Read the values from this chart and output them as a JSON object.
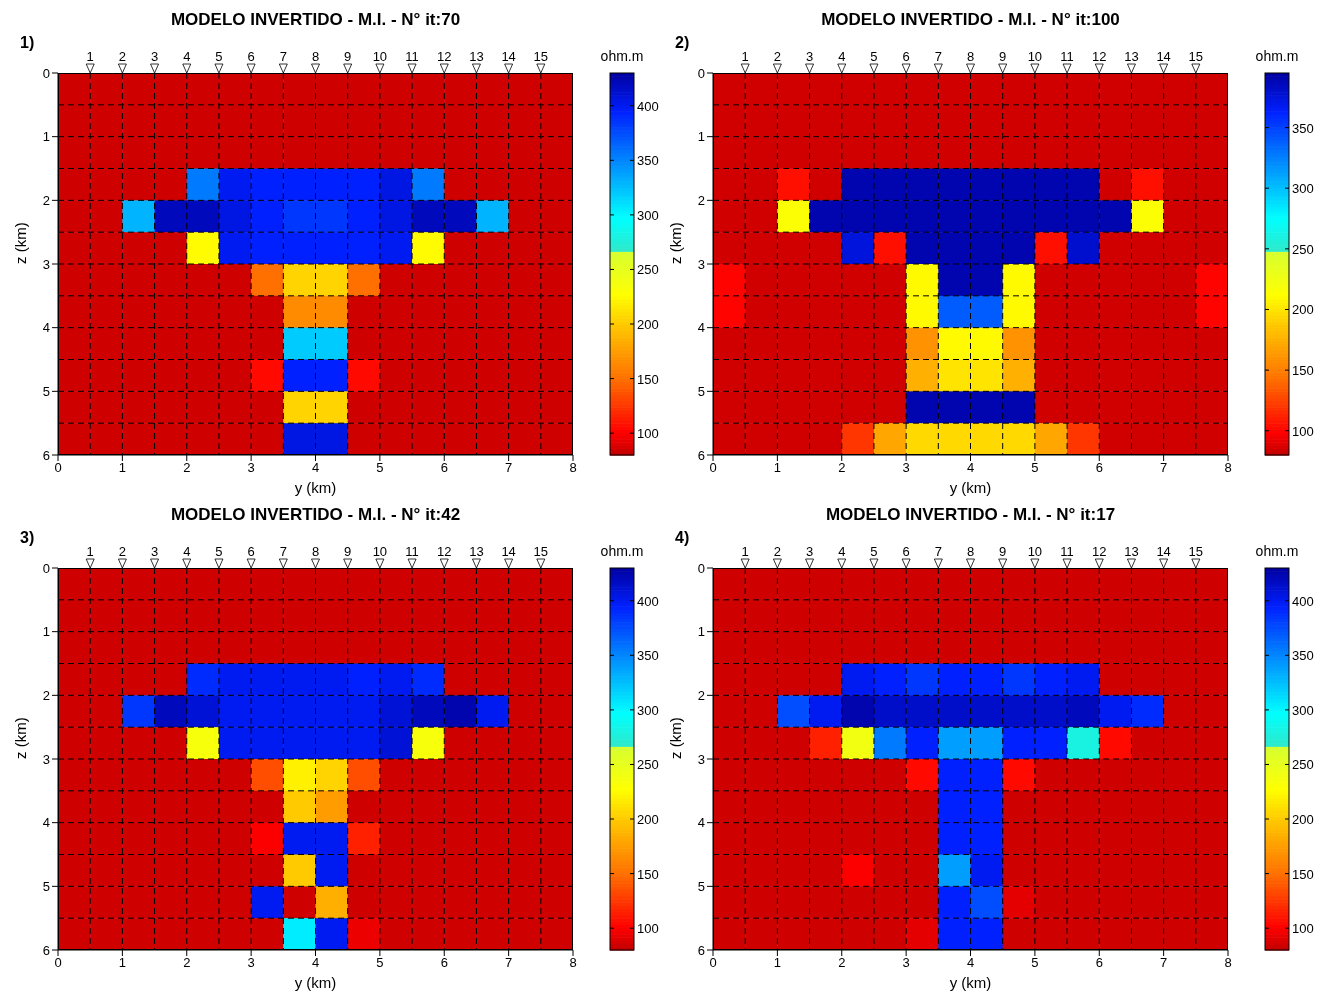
{
  "chart_data": [
    {
      "type": "heatmap",
      "title": "MODELO INVERTIDO - M.I. - N° it:70",
      "annotations": [
        "1)"
      ],
      "xlabel": "y (km)",
      "ylabel": "z (km)",
      "clabel": "ohm.m",
      "xlim": [
        0,
        8
      ],
      "xticks": [
        0,
        1,
        2,
        3,
        4,
        5,
        6,
        7,
        8
      ],
      "ylim": [
        6,
        0
      ],
      "yticks": [
        0,
        1,
        2,
        3,
        4,
        5,
        6
      ],
      "x2lim": [
        0,
        16
      ],
      "x2ticks": [
        1,
        2,
        3,
        4,
        5,
        6,
        7,
        8,
        9,
        10,
        11,
        12,
        13,
        14,
        15
      ],
      "grid": true,
      "clim": [
        80,
        430
      ],
      "cticks": [
        100,
        150,
        200,
        250,
        300,
        350,
        400
      ],
      "cells": [
        [
          85,
          85,
          85,
          85,
          85,
          85,
          85,
          85,
          85,
          85,
          85,
          85,
          85,
          85,
          85,
          85
        ],
        [
          85,
          85,
          85,
          85,
          85,
          85,
          85,
          85,
          85,
          85,
          85,
          85,
          85,
          85,
          85,
          85
        ],
        [
          85,
          85,
          85,
          85,
          85,
          85,
          85,
          85,
          85,
          85,
          85,
          85,
          85,
          85,
          85,
          85
        ],
        [
          85,
          85,
          85,
          85,
          355,
          400,
          395,
          395,
          395,
          395,
          405,
          355,
          85,
          85,
          85,
          85
        ],
        [
          85,
          85,
          330,
          420,
          420,
          405,
          395,
          385,
          385,
          395,
          405,
          420,
          420,
          330,
          85,
          85
        ],
        [
          85,
          85,
          85,
          85,
          225,
          400,
          395,
          395,
          395,
          395,
          400,
          225,
          85,
          85,
          85,
          85
        ],
        [
          85,
          85,
          85,
          85,
          85,
          85,
          150,
          205,
          205,
          150,
          85,
          85,
          85,
          85,
          85,
          85
        ],
        [
          85,
          85,
          85,
          85,
          85,
          85,
          85,
          165,
          165,
          85,
          85,
          85,
          85,
          85,
          85,
          85
        ],
        [
          85,
          85,
          85,
          85,
          85,
          85,
          85,
          320,
          320,
          85,
          85,
          85,
          85,
          85,
          85,
          85
        ],
        [
          85,
          85,
          85,
          85,
          85,
          85,
          105,
          395,
          395,
          105,
          85,
          85,
          85,
          85,
          85,
          85
        ],
        [
          85,
          85,
          85,
          85,
          85,
          85,
          85,
          205,
          205,
          85,
          85,
          85,
          85,
          85,
          85,
          85
        ],
        [
          85,
          85,
          85,
          85,
          85,
          85,
          85,
          405,
          405,
          85,
          85,
          85,
          85,
          85,
          85,
          85
        ]
      ]
    },
    {
      "type": "heatmap",
      "title": "MODELO INVERTIDO - M.I. - N° it:100",
      "annotations": [
        "2)"
      ],
      "xlabel": "y (km)",
      "ylabel": "z (km)",
      "clabel": "ohm.m",
      "xlim": [
        0,
        8
      ],
      "xticks": [
        0,
        1,
        2,
        3,
        4,
        5,
        6,
        7,
        8
      ],
      "ylim": [
        6,
        0
      ],
      "yticks": [
        0,
        1,
        2,
        3,
        4,
        5,
        6
      ],
      "x2lim": [
        0,
        16
      ],
      "x2ticks": [
        1,
        2,
        3,
        4,
        5,
        6,
        7,
        8,
        9,
        10,
        11,
        12,
        13,
        14,
        15
      ],
      "grid": true,
      "clim": [
        80,
        395
      ],
      "cticks": [
        100,
        150,
        200,
        250,
        300,
        350
      ],
      "cells": [
        [
          85,
          85,
          85,
          85,
          85,
          85,
          85,
          85,
          85,
          85,
          85,
          85,
          85,
          85,
          85,
          85
        ],
        [
          85,
          85,
          85,
          85,
          85,
          85,
          85,
          85,
          85,
          85,
          85,
          85,
          85,
          85,
          85,
          85
        ],
        [
          85,
          85,
          85,
          85,
          85,
          85,
          85,
          85,
          85,
          85,
          85,
          85,
          85,
          85,
          85,
          85
        ],
        [
          85,
          85,
          105,
          85,
          390,
          390,
          390,
          390,
          390,
          390,
          390,
          390,
          85,
          105,
          85,
          85
        ],
        [
          85,
          85,
          215,
          390,
          390,
          390,
          390,
          390,
          390,
          390,
          390,
          390,
          390,
          215,
          85,
          85
        ],
        [
          85,
          85,
          85,
          85,
          375,
          105,
          390,
          390,
          390,
          390,
          105,
          380,
          85,
          85,
          85,
          85
        ],
        [
          100,
          85,
          85,
          85,
          85,
          85,
          210,
          390,
          390,
          210,
          85,
          85,
          85,
          85,
          85,
          100
        ],
        [
          100,
          85,
          85,
          85,
          85,
          85,
          210,
          340,
          340,
          210,
          85,
          85,
          85,
          85,
          85,
          100
        ],
        [
          85,
          85,
          85,
          85,
          85,
          85,
          160,
          210,
          210,
          160,
          85,
          85,
          85,
          85,
          85,
          85
        ],
        [
          85,
          85,
          85,
          85,
          85,
          85,
          175,
          200,
          200,
          175,
          85,
          85,
          85,
          85,
          85,
          85
        ],
        [
          85,
          85,
          85,
          85,
          85,
          85,
          390,
          390,
          390,
          390,
          85,
          85,
          85,
          85,
          85,
          85
        ],
        [
          85,
          85,
          85,
          85,
          120,
          170,
          195,
          195,
          195,
          195,
          170,
          120,
          85,
          85,
          85,
          85
        ]
      ]
    },
    {
      "type": "heatmap",
      "title": "MODELO INVERTIDO - M.I. - N° it:42",
      "annotations": [
        "3)"
      ],
      "xlabel": "y (km)",
      "ylabel": "z (km)",
      "clabel": "ohm.m",
      "xlim": [
        0,
        8
      ],
      "xticks": [
        0,
        1,
        2,
        3,
        4,
        5,
        6,
        7,
        8
      ],
      "ylim": [
        6,
        0
      ],
      "yticks": [
        0,
        1,
        2,
        3,
        4,
        5,
        6
      ],
      "x2lim": [
        0,
        16
      ],
      "x2ticks": [
        1,
        2,
        3,
        4,
        5,
        6,
        7,
        8,
        9,
        10,
        11,
        12,
        13,
        14,
        15
      ],
      "grid": true,
      "clim": [
        80,
        430
      ],
      "cticks": [
        100,
        150,
        200,
        250,
        300,
        350,
        400
      ],
      "cells": [
        [
          85,
          85,
          85,
          85,
          85,
          85,
          85,
          85,
          85,
          85,
          85,
          85,
          85,
          85,
          85,
          85
        ],
        [
          85,
          85,
          85,
          85,
          85,
          85,
          85,
          85,
          85,
          85,
          85,
          85,
          85,
          85,
          85,
          85
        ],
        [
          85,
          85,
          85,
          85,
          85,
          85,
          85,
          85,
          85,
          85,
          85,
          85,
          85,
          85,
          85,
          85
        ],
        [
          85,
          85,
          85,
          85,
          390,
          400,
          400,
          400,
          400,
          395,
          400,
          390,
          85,
          85,
          85,
          85
        ],
        [
          85,
          85,
          385,
          420,
          410,
          400,
          400,
          400,
          400,
          400,
          410,
          420,
          425,
          400,
          85,
          85
        ],
        [
          85,
          85,
          85,
          85,
          235,
          400,
          400,
          400,
          400,
          400,
          410,
          235,
          85,
          85,
          85,
          85
        ],
        [
          85,
          85,
          85,
          85,
          85,
          85,
          135,
          220,
          205,
          135,
          85,
          85,
          85,
          85,
          85,
          85
        ],
        [
          85,
          85,
          85,
          85,
          85,
          85,
          85,
          200,
          175,
          85,
          85,
          85,
          85,
          85,
          85,
          85
        ],
        [
          85,
          85,
          85,
          85,
          85,
          85,
          100,
          400,
          400,
          115,
          85,
          85,
          85,
          85,
          85,
          85
        ],
        [
          85,
          85,
          85,
          85,
          85,
          85,
          85,
          200,
          400,
          85,
          85,
          85,
          85,
          85,
          85,
          85
        ],
        [
          85,
          85,
          85,
          85,
          85,
          85,
          400,
          85,
          185,
          85,
          85,
          85,
          85,
          85,
          85,
          85
        ],
        [
          85,
          85,
          85,
          85,
          85,
          85,
          85,
          305,
          400,
          95,
          85,
          85,
          85,
          85,
          85,
          85
        ]
      ]
    },
    {
      "type": "heatmap",
      "title": "MODELO INVERTIDO - M.I. - N° it:17",
      "annotations": [
        "4)"
      ],
      "xlabel": "y (km)",
      "ylabel": "z (km)",
      "clabel": "ohm.m",
      "xlim": [
        0,
        8
      ],
      "xticks": [
        0,
        1,
        2,
        3,
        4,
        5,
        6,
        7,
        8
      ],
      "ylim": [
        6,
        0
      ],
      "yticks": [
        0,
        1,
        2,
        3,
        4,
        5,
        6
      ],
      "x2lim": [
        0,
        16
      ],
      "x2ticks": [
        1,
        2,
        3,
        4,
        5,
        6,
        7,
        8,
        9,
        10,
        11,
        12,
        13,
        14,
        15
      ],
      "grid": true,
      "clim": [
        80,
        430
      ],
      "cticks": [
        100,
        150,
        200,
        250,
        300,
        350,
        400
      ],
      "cells": [
        [
          85,
          85,
          85,
          85,
          85,
          85,
          85,
          85,
          85,
          85,
          85,
          85,
          85,
          85,
          85,
          85
        ],
        [
          85,
          85,
          85,
          85,
          85,
          85,
          85,
          85,
          85,
          85,
          85,
          85,
          85,
          85,
          85,
          85
        ],
        [
          85,
          85,
          85,
          85,
          85,
          85,
          85,
          85,
          85,
          85,
          85,
          85,
          85,
          85,
          85,
          85
        ],
        [
          85,
          85,
          85,
          85,
          400,
          395,
          385,
          395,
          395,
          385,
          395,
          400,
          85,
          85,
          85,
          85
        ],
        [
          85,
          85,
          375,
          400,
          425,
          415,
          415,
          415,
          415,
          415,
          415,
          420,
          400,
          390,
          85,
          85
        ],
        [
          85,
          85,
          85,
          115,
          240,
          355,
          395,
          340,
          340,
          395,
          395,
          280,
          105,
          85,
          85,
          85
        ],
        [
          85,
          85,
          85,
          85,
          85,
          85,
          105,
          395,
          395,
          105,
          85,
          85,
          85,
          85,
          85,
          85
        ],
        [
          85,
          85,
          85,
          85,
          85,
          85,
          85,
          395,
          395,
          85,
          85,
          85,
          85,
          85,
          85,
          85
        ],
        [
          85,
          85,
          85,
          85,
          85,
          85,
          85,
          395,
          395,
          85,
          85,
          85,
          85,
          85,
          85,
          85
        ],
        [
          85,
          85,
          85,
          85,
          100,
          85,
          85,
          340,
          400,
          85,
          85,
          85,
          85,
          85,
          85,
          85
        ],
        [
          85,
          85,
          85,
          85,
          85,
          85,
          85,
          395,
          375,
          92,
          85,
          85,
          85,
          85,
          85,
          85
        ],
        [
          85,
          85,
          85,
          85,
          85,
          85,
          92,
          395,
          395,
          85,
          85,
          85,
          85,
          85,
          85,
          85
        ]
      ]
    }
  ]
}
